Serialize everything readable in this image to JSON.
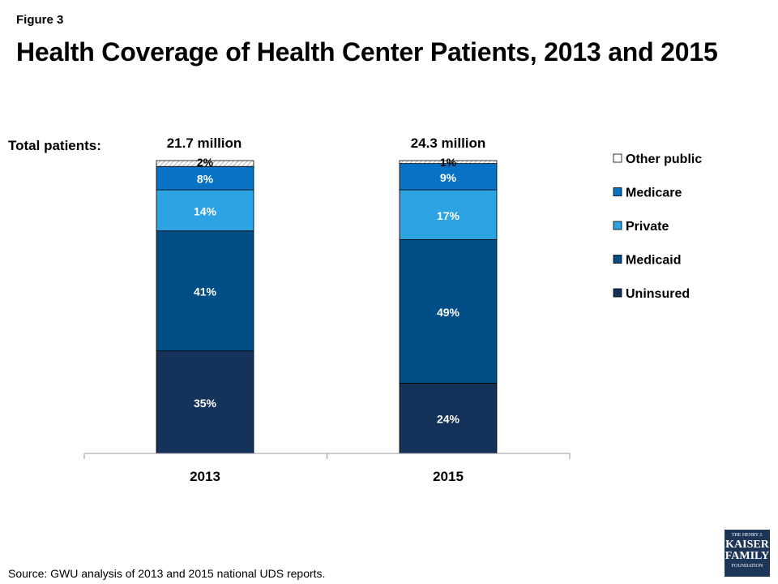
{
  "figure_label": "Figure 3",
  "title": "Health Coverage of Health Center Patients, 2013 and 2015",
  "total_patients_label": "Total patients:",
  "totals": [
    "21.7 million",
    "24.3 million"
  ],
  "source": "Source: GWU analysis of 2013 and 2015 national UDS reports.",
  "logo": {
    "line1": "THE HENRY J.",
    "line2": "KAISER",
    "line3": "FAMILY",
    "line4": "FOUNDATION"
  },
  "chart_data": {
    "type": "bar",
    "stacked": true,
    "categories": [
      "2013",
      "2015"
    ],
    "series": [
      {
        "name": "Uninsured",
        "values": [
          35,
          24
        ],
        "labels": [
          "35%",
          "24%"
        ],
        "color": "#15335a"
      },
      {
        "name": "Medicaid",
        "values": [
          41,
          49
        ],
        "labels": [
          "41%",
          "49%"
        ],
        "color": "#014e87"
      },
      {
        "name": "Private",
        "values": [
          14,
          17
        ],
        "labels": [
          "14%",
          "17%"
        ],
        "color": "#2da3e3"
      },
      {
        "name": "Medicare",
        "values": [
          8,
          9
        ],
        "labels": [
          "8%",
          "9%"
        ],
        "color": "#0873c4"
      },
      {
        "name": "Other public",
        "values": [
          2,
          1
        ],
        "labels": [
          "2%",
          "1%"
        ],
        "color": "#ffffff",
        "hatched": true
      }
    ],
    "legend_order": [
      "Other public",
      "Medicare",
      "Private",
      "Medicaid",
      "Uninsured"
    ],
    "legend_position": "right",
    "ylim": [
      0,
      100
    ],
    "grid": false
  }
}
